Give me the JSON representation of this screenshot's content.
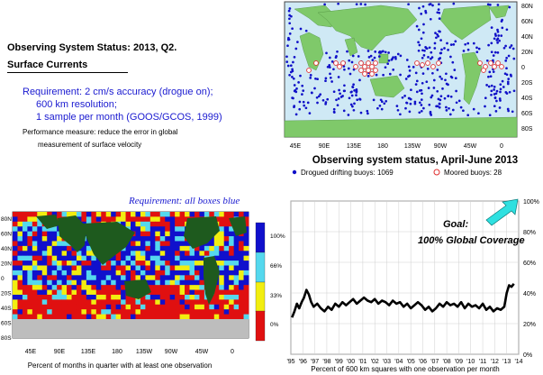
{
  "left_text": {
    "title_line1": "Observing System Status:  2013, Q2.",
    "title_line2": "Surface Currents",
    "requirement_lines": [
      "Requirement: 2 cm/s accuracy (drogue on);",
      "600 km resolution;",
      "1 sample per month (GOOS/GCOS, 1999)"
    ],
    "performance_lines": [
      "Performance measure: reduce the error in global",
      "measurement of surface velocity"
    ]
  },
  "buoy_map": {
    "title": "Observing system status, April-June 2013",
    "legend": [
      {
        "label": "Drogued drifting buoys: 1069",
        "color": "#1010c8"
      },
      {
        "label": "Moored buoys: 28",
        "color": "#e03030"
      }
    ],
    "lon_labels": [
      "45E",
      "90E",
      "135E",
      "180",
      "135W",
      "90W",
      "45W",
      "0"
    ],
    "lat_labels": [
      "80N",
      "60N",
      "40N",
      "20N",
      "0",
      "20S",
      "40S",
      "60S",
      "80S"
    ],
    "ocean_color": "#cfe9f5",
    "land_color": "#7fc96a"
  },
  "coverage_map": {
    "requirement_label": "Requirement: all boxes blue",
    "lon_labels": [
      "45E",
      "90E",
      "135E",
      "180",
      "135W",
      "90W",
      "45W",
      "0"
    ],
    "lat_labels": [
      "80N",
      "60N",
      "40N",
      "20N",
      "0",
      "20S",
      "40S",
      "60S",
      "80S"
    ],
    "caption": "Percent of months in quarter with at least one observation",
    "colorbar": [
      {
        "label": "100%",
        "color": "#1010cc"
      },
      {
        "label": "66%",
        "color": "#55d8ee"
      },
      {
        "label": "33%",
        "color": "#f2ee10"
      },
      {
        "label": "0%",
        "color": "#e01010"
      }
    ],
    "land_color": "#1e5a1e"
  },
  "chart_data": {
    "type": "line",
    "title": "",
    "xlabel": "Percent of 600 km squares with one observation per month",
    "ylabel": "",
    "x_tick_labels": [
      "'95",
      "'96",
      "'97",
      "'98",
      "'99",
      "'00",
      "'01",
      "'02",
      "'03",
      "'04",
      "'05",
      "'06",
      "'07",
      "'08",
      "'09",
      "'10",
      "'11",
      "'12",
      "'13",
      "'14"
    ],
    "y_tick_labels": [
      "0%",
      "20%",
      "40%",
      "60%",
      "80%",
      "100%"
    ],
    "ylim": [
      0,
      100
    ],
    "xlim": [
      1995,
      2014
    ],
    "annotations": [
      "Goal:",
      "100% Global Coverage"
    ],
    "grid": true,
    "series": [
      {
        "color": "#000000",
        "x": [
          1995.1,
          1995.3,
          1995.5,
          1995.7,
          1995.9,
          1996.1,
          1996.3,
          1996.5,
          1996.7,
          1996.9,
          1997.2,
          1997.5,
          1997.8,
          1998.1,
          1998.4,
          1998.7,
          1999.0,
          1999.3,
          1999.6,
          1999.9,
          2000.2,
          2000.5,
          2000.8,
          2001.1,
          2001.4,
          2001.7,
          2002.0,
          2002.3,
          2002.6,
          2002.9,
          2003.2,
          2003.5,
          2003.8,
          2004.1,
          2004.4,
          2004.7,
          2005.0,
          2005.3,
          2005.6,
          2005.9,
          2006.2,
          2006.5,
          2006.8,
          2007.1,
          2007.4,
          2007.7,
          2008.0,
          2008.3,
          2008.6,
          2008.9,
          2009.2,
          2009.5,
          2009.8,
          2010.1,
          2010.4,
          2010.7,
          2011.0,
          2011.3,
          2011.6,
          2011.9,
          2012.2,
          2012.5,
          2012.8,
          2013.0,
          2013.2,
          2013.4,
          2013.6
        ],
        "y": [
          24,
          28,
          33,
          30,
          34,
          37,
          42,
          39,
          34,
          31,
          33,
          30,
          28,
          31,
          29,
          33,
          31,
          34,
          32,
          34,
          36,
          33,
          35,
          37,
          35,
          34,
          36,
          33,
          35,
          34,
          32,
          35,
          33,
          34,
          31,
          33,
          30,
          32,
          34,
          32,
          29,
          31,
          28,
          30,
          33,
          31,
          34,
          32,
          33,
          31,
          34,
          30,
          33,
          31,
          32,
          30,
          33,
          29,
          31,
          28,
          30,
          29,
          31,
          40,
          45,
          44,
          46
        ]
      }
    ]
  }
}
